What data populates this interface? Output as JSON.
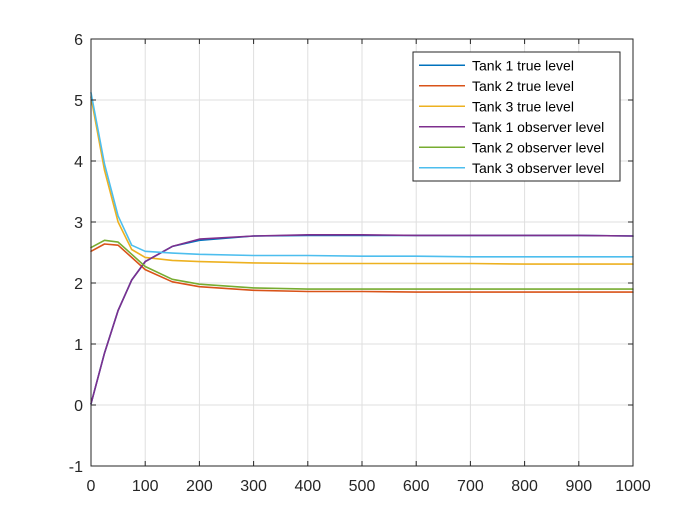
{
  "chart_data": {
    "type": "line",
    "title": "",
    "xlabel": "",
    "ylabel": "",
    "xlim": [
      0,
      1000
    ],
    "ylim": [
      -1,
      6
    ],
    "xticks": [
      0,
      100,
      200,
      300,
      400,
      500,
      600,
      700,
      800,
      900,
      1000
    ],
    "yticks": [
      -1,
      0,
      1,
      2,
      3,
      4,
      5,
      6
    ],
    "grid": true,
    "legend_position": "top-right",
    "series": [
      {
        "name": "Tank 1 true level",
        "color": "#0072BD",
        "x": [
          0,
          25,
          50,
          75,
          100,
          150,
          200,
          300,
          400,
          500,
          600,
          700,
          800,
          900,
          1000
        ],
        "y": [
          0.02,
          0.85,
          1.55,
          2.05,
          2.35,
          2.6,
          2.7,
          2.77,
          2.78,
          2.78,
          2.78,
          2.78,
          2.78,
          2.78,
          2.77
        ]
      },
      {
        "name": "Tank 2 true level",
        "color": "#D95319",
        "x": [
          0,
          25,
          50,
          75,
          100,
          150,
          200,
          300,
          400,
          500,
          600,
          700,
          800,
          900,
          1000
        ],
        "y": [
          2.52,
          2.64,
          2.62,
          2.42,
          2.22,
          2.02,
          1.94,
          1.88,
          1.86,
          1.86,
          1.85,
          1.85,
          1.85,
          1.85,
          1.85
        ]
      },
      {
        "name": "Tank 3 true level",
        "color": "#EDB120",
        "x": [
          0,
          25,
          50,
          75,
          100,
          150,
          200,
          300,
          400,
          500,
          600,
          700,
          800,
          900,
          1000
        ],
        "y": [
          5.05,
          3.85,
          3.0,
          2.55,
          2.42,
          2.37,
          2.35,
          2.33,
          2.32,
          2.32,
          2.32,
          2.32,
          2.31,
          2.31,
          2.31
        ]
      },
      {
        "name": "Tank 1 observer level",
        "color": "#7E2F8E",
        "x": [
          0,
          25,
          50,
          75,
          100,
          150,
          200,
          300,
          400,
          500,
          600,
          700,
          800,
          900,
          1000
        ],
        "y": [
          0.02,
          0.85,
          1.55,
          2.05,
          2.35,
          2.6,
          2.72,
          2.77,
          2.79,
          2.79,
          2.78,
          2.78,
          2.78,
          2.78,
          2.77
        ]
      },
      {
        "name": "Tank 2 observer level",
        "color": "#77AC30",
        "x": [
          0,
          25,
          50,
          75,
          100,
          150,
          200,
          300,
          400,
          500,
          600,
          700,
          800,
          900,
          1000
        ],
        "y": [
          2.58,
          2.7,
          2.67,
          2.47,
          2.27,
          2.06,
          1.98,
          1.92,
          1.9,
          1.9,
          1.9,
          1.9,
          1.9,
          1.9,
          1.9
        ]
      },
      {
        "name": "Tank 3 observer level",
        "color": "#4DBEEE",
        "x": [
          0,
          25,
          50,
          75,
          100,
          150,
          200,
          300,
          400,
          500,
          600,
          700,
          800,
          900,
          1000
        ],
        "y": [
          5.12,
          3.95,
          3.1,
          2.62,
          2.52,
          2.49,
          2.47,
          2.45,
          2.45,
          2.44,
          2.44,
          2.43,
          2.43,
          2.43,
          2.43
        ]
      }
    ]
  }
}
